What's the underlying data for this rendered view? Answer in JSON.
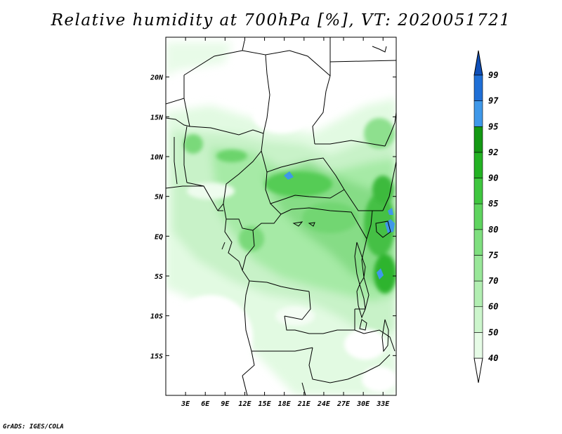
{
  "title": "Relative humidity at 700hPa [%], VT: 2020051721",
  "credit": "GrADS: IGES/COLA",
  "map": {
    "lon_range": [
      0,
      35
    ],
    "lat_range": [
      -20,
      25
    ],
    "lat_ticks": [
      {
        "value": 20,
        "label": "20N"
      },
      {
        "value": 15,
        "label": "15N"
      },
      {
        "value": 10,
        "label": "10N"
      },
      {
        "value": 5,
        "label": "5N"
      },
      {
        "value": 0,
        "label": "EQ"
      },
      {
        "value": -5,
        "label": "5S"
      },
      {
        "value": -10,
        "label": "10S"
      },
      {
        "value": -15,
        "label": "15S"
      }
    ],
    "lon_ticks": [
      {
        "value": 3,
        "label": "3E"
      },
      {
        "value": 6,
        "label": "6E"
      },
      {
        "value": 9,
        "label": "9E"
      },
      {
        "value": 12,
        "label": "12E"
      },
      {
        "value": 15,
        "label": "15E"
      },
      {
        "value": 18,
        "label": "18E"
      },
      {
        "value": 21,
        "label": "21E"
      },
      {
        "value": 24,
        "label": "24E"
      },
      {
        "value": 27,
        "label": "27E"
      },
      {
        "value": 30,
        "label": "30E"
      },
      {
        "value": 33,
        "label": "33E"
      }
    ]
  },
  "colorbar": {
    "levels": [
      "40",
      "50",
      "60",
      "70",
      "75",
      "80",
      "85",
      "90",
      "92",
      "95",
      "97",
      "99"
    ],
    "colors": [
      "#ffffff",
      "#e6fbe6",
      "#ccf5cc",
      "#b2eeb2",
      "#99e799",
      "#7fdf7f",
      "#5fd45f",
      "#3fc63f",
      "#23b223",
      "#139813",
      "#3f98e9",
      "#1f6fd6",
      "#0f4fb8"
    ]
  },
  "colors": {
    "border": "#000000",
    "lake": "#3f98e9"
  }
}
